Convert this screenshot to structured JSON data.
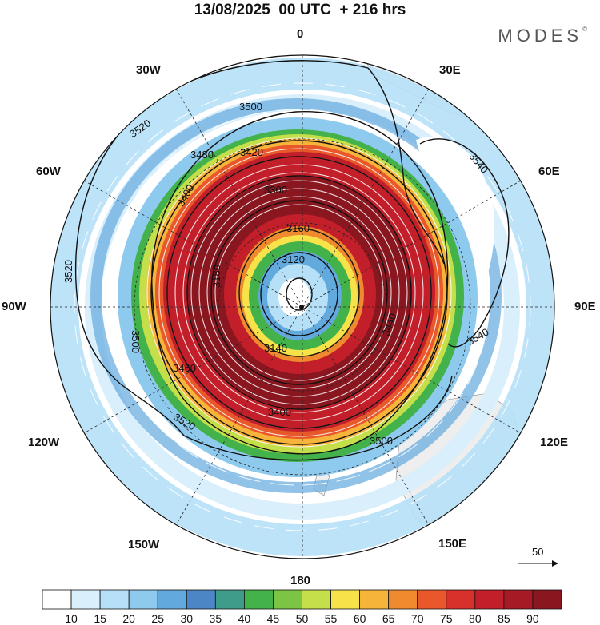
{
  "title": "13/08/2025  00 UTC  + 216 hrs",
  "brand": "MODES",
  "brand_mark": "©",
  "longitude_labels": {
    "lon_0": "0",
    "lon_30e": "30E",
    "lon_60e": "60E",
    "lon_90e": "90E",
    "lon_120e": "120E",
    "lon_150e": "150E",
    "lon_180": "180",
    "lon_150w": "150W",
    "lon_120w": "120W",
    "lon_90w": "90W",
    "lon_60w": "60W",
    "lon_30w": "30W"
  },
  "contour_labels": [
    "3120",
    "3160",
    "3180",
    "3140",
    "3400",
    "3420",
    "3480",
    "3500",
    "3520",
    "3540",
    "3500",
    "3520",
    "3540",
    "3520",
    "3460",
    "3400",
    "3300",
    "3440",
    "3500"
  ],
  "vector_reference": {
    "value": "50"
  },
  "colorbar": {
    "labels": [
      "10",
      "15",
      "20",
      "25",
      "30",
      "35",
      "40",
      "45",
      "50",
      "55",
      "60",
      "65",
      "70",
      "75",
      "80",
      "85",
      "90"
    ],
    "colors": [
      "#ffffff",
      "#d9effc",
      "#b6e0f7",
      "#8ecaee",
      "#62a9de",
      "#4d86c4",
      "#3f9b8a",
      "#43b24a",
      "#7cc544",
      "#c5df4a",
      "#f6e34a",
      "#f6b43a",
      "#f08a2e",
      "#e8582a",
      "#d8302a",
      "#c21f2a",
      "#a51a24",
      "#8a1620"
    ]
  },
  "colors": {
    "land": "#eeeeee",
    "contour": "#111111",
    "streamline": "#ffffff"
  }
}
